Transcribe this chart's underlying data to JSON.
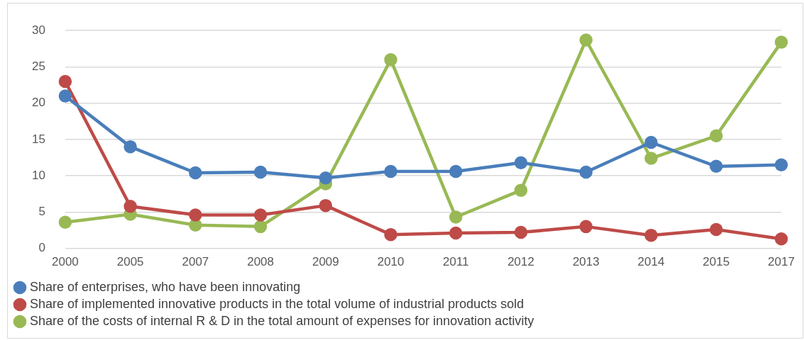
{
  "chart_data": {
    "type": "line",
    "categories": [
      "2000",
      "2005",
      "2007",
      "2008",
      "2009",
      "2010",
      "2011",
      "2012",
      "2013",
      "2014",
      "2015",
      "2017"
    ],
    "series": [
      {
        "name": "Share of enterprises, who have been innovating",
        "color": "#4a7ebb",
        "values": [
          21.0,
          14.0,
          10.4,
          10.5,
          9.7,
          10.6,
          10.6,
          11.8,
          10.5,
          14.6,
          11.3,
          11.5
        ]
      },
      {
        "name": "Share of implemented innovative products in the total volume of industrial products sold",
        "color": "#be4b48",
        "values": [
          23.0,
          5.8,
          4.6,
          4.6,
          5.9,
          1.9,
          2.1,
          2.2,
          3.0,
          1.8,
          2.6,
          1.3
        ]
      },
      {
        "name": "Share of the costs of internal R & D in the total amount of expenses for innovation activity",
        "color": "#98b954",
        "values": [
          3.6,
          4.7,
          3.2,
          3.0,
          8.9,
          26.0,
          4.3,
          8.0,
          28.7,
          12.4,
          15.5,
          28.4
        ]
      }
    ],
    "ylim": [
      0,
      30
    ],
    "yticks": [
      0,
      5,
      10,
      15,
      20,
      25,
      30
    ],
    "grid": "y",
    "legend": "bottom",
    "marker": "circle",
    "line_style": "solid"
  }
}
